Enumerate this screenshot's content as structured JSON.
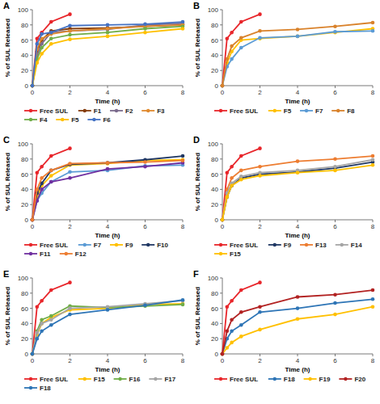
{
  "chart_data": [
    {
      "type": "line",
      "title": "A",
      "x_label": "Time (h)",
      "y_label": "% of SUL Released",
      "x": [
        0,
        0.25,
        0.5,
        1,
        2,
        4,
        6,
        8
      ],
      "xlim": [
        0,
        8
      ],
      "xticks": [
        0,
        2,
        4,
        6,
        8
      ],
      "ylim": [
        0,
        100
      ],
      "yticks": [
        0,
        20,
        40,
        60,
        80,
        100
      ],
      "marker": "circle",
      "series": [
        {
          "name": "Free SUL",
          "color": "#e8262b",
          "values": [
            0,
            62,
            70,
            84,
            94,
            null,
            null,
            null
          ]
        },
        {
          "name": "F1",
          "color": "#843c0c",
          "values": [
            0,
            45,
            60,
            72,
            75,
            76,
            78,
            80
          ]
        },
        {
          "name": "F2",
          "color": "#7b6b8d",
          "values": [
            0,
            40,
            55,
            70,
            72,
            74,
            80,
            82
          ]
        },
        {
          "name": "F3",
          "color": "#e08a2e",
          "values": [
            0,
            48,
            62,
            68,
            72,
            75,
            78,
            80
          ]
        },
        {
          "name": "F4",
          "color": "#70ad47",
          "values": [
            0,
            35,
            50,
            62,
            67,
            70,
            75,
            78
          ]
        },
        {
          "name": "F5",
          "color": "#ffc000",
          "values": [
            0,
            30,
            42,
            55,
            61,
            65,
            70,
            75
          ]
        },
        {
          "name": "F6",
          "color": "#4472c4",
          "values": [
            0,
            55,
            68,
            70,
            79,
            80,
            81,
            84
          ]
        }
      ]
    },
    {
      "type": "line",
      "title": "B",
      "x_label": "Time (h)",
      "y_label": "% of SUL Released",
      "x": [
        0,
        0.25,
        0.5,
        1,
        2,
        4,
        6,
        8
      ],
      "xlim": [
        0,
        8
      ],
      "xticks": [
        0,
        2,
        4,
        6,
        8
      ],
      "ylim": [
        0,
        100
      ],
      "yticks": [
        0,
        20,
        40,
        60,
        80,
        100
      ],
      "marker": "circle",
      "series": [
        {
          "name": "Free SUL",
          "color": "#e8262b",
          "values": [
            0,
            62,
            70,
            84,
            94,
            null,
            null,
            null
          ]
        },
        {
          "name": "F5",
          "color": "#ffc000",
          "values": [
            0,
            30,
            45,
            60,
            62,
            65,
            70,
            75
          ]
        },
        {
          "name": "F7",
          "color": "#5b9bd5",
          "values": [
            0,
            25,
            35,
            50,
            63,
            65,
            71,
            72
          ]
        },
        {
          "name": "F8",
          "color": "#d9822b",
          "values": [
            0,
            35,
            52,
            63,
            72,
            74,
            78,
            83
          ]
        }
      ]
    },
    {
      "type": "line",
      "title": "C",
      "x_label": "Time (h)",
      "y_label": "% of SUL Released",
      "x": [
        0,
        0.25,
        0.5,
        1,
        2,
        4,
        6,
        8
      ],
      "xlim": [
        0,
        8
      ],
      "xticks": [
        0,
        2,
        4,
        6,
        8
      ],
      "ylim": [
        0,
        100
      ],
      "yticks": [
        0,
        20,
        40,
        60,
        80,
        100
      ],
      "marker": "circle",
      "series": [
        {
          "name": "Free SUL",
          "color": "#e8262b",
          "values": [
            0,
            62,
            70,
            84,
            94,
            null,
            null,
            null
          ]
        },
        {
          "name": "F7",
          "color": "#5b9bd5",
          "values": [
            0,
            25,
            35,
            50,
            63,
            65,
            71,
            72
          ]
        },
        {
          "name": "F9",
          "color": "#ffc000",
          "values": [
            0,
            30,
            45,
            58,
            72,
            74,
            78,
            79
          ]
        },
        {
          "name": "F10",
          "color": "#203864",
          "values": [
            0,
            35,
            48,
            65,
            73,
            75,
            79,
            84
          ]
        },
        {
          "name": "F11",
          "color": "#7030a0",
          "values": [
            0,
            25,
            40,
            50,
            55,
            67,
            70,
            75
          ]
        },
        {
          "name": "F12",
          "color": "#ed7d31",
          "values": [
            0,
            40,
            55,
            65,
            74,
            75,
            76,
            78
          ]
        }
      ]
    },
    {
      "type": "line",
      "title": "D",
      "x_label": "Time (h)",
      "y_label": "% of SUL Released",
      "x": [
        0,
        0.25,
        0.5,
        1,
        2,
        4,
        6,
        8
      ],
      "xlim": [
        0,
        8
      ],
      "xticks": [
        0,
        2,
        4,
        6,
        8
      ],
      "ylim": [
        0,
        100
      ],
      "yticks": [
        0,
        20,
        40,
        60,
        80,
        100
      ],
      "marker": "circle",
      "series": [
        {
          "name": "Free SUL",
          "color": "#e8262b",
          "values": [
            0,
            62,
            70,
            84,
            94,
            null,
            null,
            null
          ]
        },
        {
          "name": "F9",
          "color": "#203864",
          "values": [
            0,
            30,
            45,
            55,
            60,
            63,
            68,
            76
          ]
        },
        {
          "name": "F13",
          "color": "#ed7d31",
          "values": [
            0,
            40,
            55,
            65,
            70,
            77,
            80,
            84
          ]
        },
        {
          "name": "F14",
          "color": "#a5a5a5",
          "values": [
            0,
            35,
            48,
            57,
            62,
            65,
            70,
            79
          ]
        },
        {
          "name": "F15",
          "color": "#ffc000",
          "values": [
            0,
            30,
            45,
            53,
            58,
            62,
            65,
            72
          ]
        }
      ]
    },
    {
      "type": "line",
      "title": "E",
      "x_label": "Time (h)",
      "y_label": "% of SUL Released",
      "x": [
        0,
        0.25,
        0.5,
        1,
        2,
        4,
        6,
        8
      ],
      "xlim": [
        0,
        8
      ],
      "xticks": [
        0,
        2,
        4,
        6,
        8
      ],
      "ylim": [
        0,
        100
      ],
      "yticks": [
        0,
        20,
        40,
        60,
        80,
        100
      ],
      "marker": "circle",
      "series": [
        {
          "name": "Free SUL",
          "color": "#e8262b",
          "values": [
            0,
            62,
            70,
            84,
            94,
            null,
            null,
            null
          ]
        },
        {
          "name": "F15",
          "color": "#ffc000",
          "values": [
            0,
            25,
            40,
            48,
            58,
            60,
            65,
            66
          ]
        },
        {
          "name": "F16",
          "color": "#70ad47",
          "values": [
            0,
            30,
            45,
            50,
            63,
            61,
            63,
            65
          ]
        },
        {
          "name": "F17",
          "color": "#a5a5a5",
          "values": [
            0,
            28,
            40,
            45,
            60,
            62,
            66,
            70
          ]
        },
        {
          "name": "F18",
          "color": "#2e75b6",
          "values": [
            0,
            20,
            30,
            38,
            52,
            58,
            64,
            71
          ]
        }
      ]
    },
    {
      "type": "line",
      "title": "F",
      "x_label": "Time (h)",
      "y_label": "% of SUL Released",
      "x": [
        0,
        0.25,
        0.5,
        1,
        2,
        4,
        6,
        8
      ],
      "xlim": [
        0,
        8
      ],
      "xticks": [
        0,
        2,
        4,
        6,
        8
      ],
      "ylim": [
        0,
        100
      ],
      "yticks": [
        0,
        20,
        40,
        60,
        80,
        100
      ],
      "marker": "circle",
      "series": [
        {
          "name": "Free SUL",
          "color": "#e8262b",
          "values": [
            0,
            62,
            70,
            84,
            94,
            null,
            null,
            null
          ]
        },
        {
          "name": "F18",
          "color": "#2e75b6",
          "values": [
            0,
            20,
            30,
            38,
            55,
            60,
            67,
            72
          ]
        },
        {
          "name": "F19",
          "color": "#ffc000",
          "values": [
            0,
            8,
            15,
            23,
            32,
            46,
            52,
            62
          ]
        },
        {
          "name": "F20",
          "color": "#b22222",
          "values": [
            0,
            30,
            45,
            55,
            62,
            75,
            78,
            84
          ]
        }
      ]
    }
  ]
}
